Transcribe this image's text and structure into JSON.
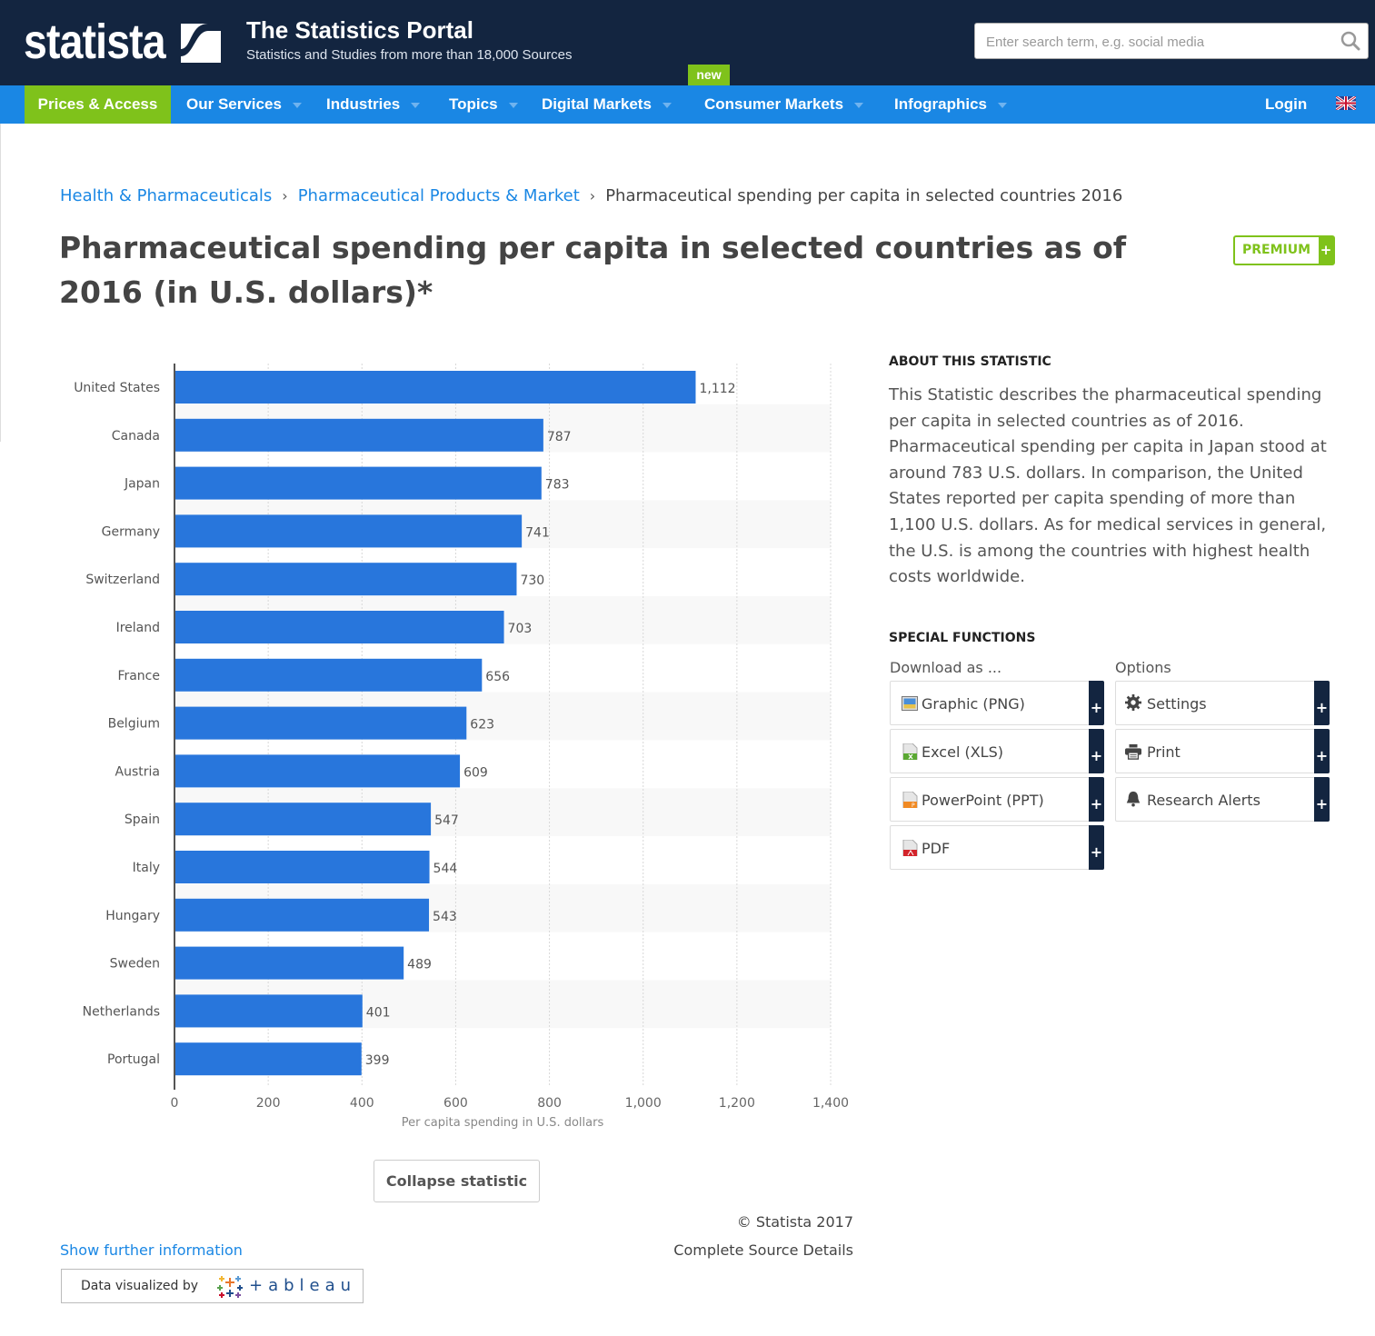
{
  "header": {
    "logo": "statista",
    "title": "The Statistics Portal",
    "subtitle": "Statistics and Studies from more than 18,000 Sources",
    "search_placeholder": "Enter search term, e.g. social media"
  },
  "nav": {
    "items": [
      {
        "label": "Prices & Access",
        "dropdown": false
      },
      {
        "label": "Our Services",
        "dropdown": true
      },
      {
        "label": "Industries",
        "dropdown": true
      },
      {
        "label": "Topics",
        "dropdown": true
      },
      {
        "label": "Digital Markets",
        "dropdown": true
      },
      {
        "label": "Consumer Markets",
        "dropdown": true
      },
      {
        "label": "Infographics",
        "dropdown": true
      }
    ],
    "new_badge": "new",
    "login": "Login"
  },
  "breadcrumb": {
    "items": [
      "Health & Pharmaceuticals",
      "Pharmaceutical Products & Market"
    ],
    "separator": "›",
    "current": "Pharmaceutical spending per capita in selected countries 2016"
  },
  "page": {
    "title": "Pharmaceutical spending per capita in selected countries as of 2016 (in U.S. dollars)*",
    "premium_label": "PREMIUM",
    "premium_plus": "+"
  },
  "colors": {
    "navy": "#132540",
    "nav_blue": "#1a87e4",
    "green": "#7fc21b",
    "bar": "#2876dc"
  },
  "chart_data": {
    "type": "bar",
    "orientation": "horizontal",
    "categories": [
      "United States",
      "Canada",
      "Japan",
      "Germany",
      "Switzerland",
      "Ireland",
      "France",
      "Belgium",
      "Austria",
      "Spain",
      "Italy",
      "Hungary",
      "Sweden",
      "Netherlands",
      "Portugal"
    ],
    "values": [
      1112,
      787,
      783,
      741,
      730,
      703,
      656,
      623,
      609,
      547,
      544,
      543,
      489,
      401,
      399
    ],
    "value_labels": [
      "1,112",
      "787",
      "783",
      "741",
      "730",
      "703",
      "656",
      "623",
      "609",
      "547",
      "544",
      "543",
      "489",
      "401",
      "399"
    ],
    "xlabel": "Per capita spending in U.S. dollars",
    "ylabel": "",
    "xlim": [
      0,
      1400
    ],
    "xticks": [
      0,
      200,
      400,
      600,
      800,
      1000,
      1200,
      1400
    ],
    "xtick_labels": [
      "0",
      "200",
      "400",
      "600",
      "800",
      "1,000",
      "1,200",
      "1,400"
    ],
    "grid": true
  },
  "about": {
    "heading": "ABOUT THIS STATISTIC",
    "text": "This Statistic describes the pharmaceutical spending per capita in selected countries as of 2016. Pharmaceutical spending per capita in Japan stood at around 783 U.S. dollars. In comparison, the United States reported per capita spending of more than 1,100 U.S. dollars. As for medical services in general, the U.S. is among the countries with highest health costs worldwide."
  },
  "special_functions": {
    "heading": "SPECIAL FUNCTIONS",
    "download_heading": "Download as ...",
    "options_heading": "Options",
    "downloads": [
      {
        "label": "Graphic (PNG)",
        "icon": "image-file-icon"
      },
      {
        "label": "Excel (XLS)",
        "icon": "excel-file-icon"
      },
      {
        "label": "PowerPoint (PPT)",
        "icon": "powerpoint-file-icon"
      },
      {
        "label": "PDF",
        "icon": "pdf-file-icon"
      }
    ],
    "options": [
      {
        "label": "Settings",
        "icon": "gear-icon"
      },
      {
        "label": "Print",
        "icon": "printer-icon"
      },
      {
        "label": "Research Alerts",
        "icon": "bell-icon"
      }
    ],
    "plus": "+"
  },
  "footer": {
    "collapse": "Collapse statistic",
    "copyright": "© Statista 2017",
    "source_details": "Complete Source Details",
    "further_info": "Show further information",
    "data_visualized_by": "Data visualized by",
    "tableau": "+ableau"
  }
}
